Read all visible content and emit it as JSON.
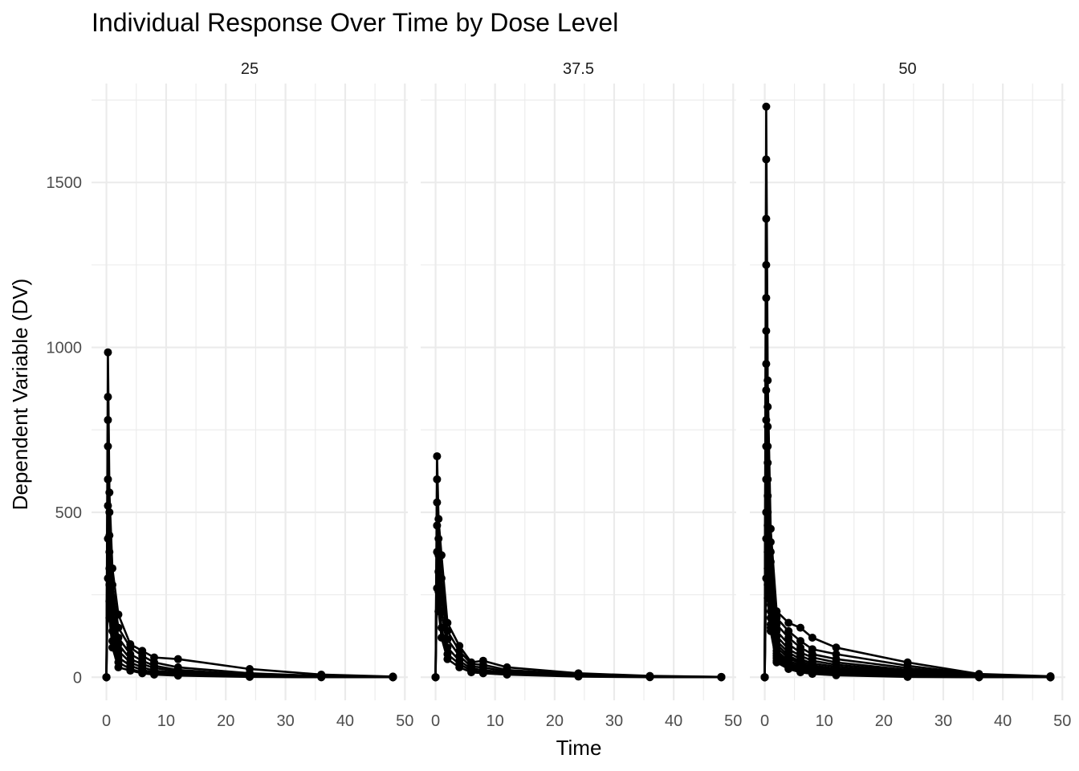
{
  "chart_data": {
    "type": "line",
    "title": "Individual Response Over Time by Dose Level",
    "xlabel": "Time",
    "ylabel": "Dependent Variable (DV)",
    "xlim": [
      -2.5,
      50.5
    ],
    "ylim": [
      -70,
      1800
    ],
    "x_ticks": [
      0,
      10,
      20,
      30,
      40,
      50
    ],
    "y_ticks": [
      0,
      500,
      1000,
      1500
    ],
    "grid": true,
    "legend": "none",
    "facets": [
      {
        "label": "25",
        "series": [
          {
            "x": [
              0,
              0.25,
              0.5,
              1,
              2,
              4,
              6,
              8,
              12,
              24,
              36,
              48
            ],
            "y": [
              0,
              985,
              560,
              330,
              190,
              100,
              80,
              60,
              55,
              25,
              8,
              2
            ]
          },
          {
            "x": [
              0,
              0.25,
              0.5,
              1,
              2,
              4,
              6,
              8,
              12,
              24,
              36,
              48
            ],
            "y": [
              0,
              850,
              500,
              280,
              150,
              90,
              65,
              45,
              30,
              12,
              4,
              1
            ]
          },
          {
            "x": [
              0,
              0.25,
              0.5,
              1,
              2,
              4,
              6,
              8,
              12,
              24,
              36,
              48
            ],
            "y": [
              0,
              780,
              430,
              240,
              120,
              70,
              50,
              35,
              22,
              8,
              3,
              1
            ]
          },
          {
            "x": [
              0,
              0.25,
              0.5,
              1,
              2,
              4,
              6,
              8,
              12,
              24,
              36,
              48
            ],
            "y": [
              0,
              700,
              380,
              200,
              100,
              55,
              40,
              28,
              18,
              6,
              2,
              0
            ]
          },
          {
            "x": [
              0,
              0.25,
              0.5,
              1,
              2,
              4,
              6,
              8,
              12,
              24,
              36,
              48
            ],
            "y": [
              0,
              600,
              330,
              170,
              80,
              45,
              30,
              20,
              14,
              4,
              1,
              0
            ]
          },
          {
            "x": [
              0,
              0.25,
              0.5,
              1,
              2,
              4,
              6,
              8,
              12,
              24,
              36,
              48
            ],
            "y": [
              0,
              520,
              280,
              140,
              60,
              35,
              22,
              15,
              10,
              3,
              1,
              0
            ]
          },
          {
            "x": [
              0,
              0.25,
              0.5,
              1,
              2,
              4,
              6,
              8,
              12,
              24,
              36,
              48
            ],
            "y": [
              0,
              420,
              230,
              110,
              45,
              25,
              15,
              10,
              7,
              2,
              0,
              0
            ]
          },
          {
            "x": [
              0,
              0.25,
              0.5,
              1,
              2,
              4,
              6,
              8,
              12,
              24,
              36,
              48
            ],
            "y": [
              0,
              300,
              180,
              90,
              30,
              20,
              12,
              8,
              5,
              1,
              0,
              0
            ]
          }
        ]
      },
      {
        "label": "37.5",
        "series": [
          {
            "x": [
              0,
              0.25,
              0.5,
              1,
              2,
              4,
              6,
              8,
              12,
              24,
              36,
              48
            ],
            "y": [
              0,
              670,
              480,
              370,
              165,
              95,
              45,
              50,
              30,
              12,
              4,
              1
            ]
          },
          {
            "x": [
              0,
              0.25,
              0.5,
              1,
              2,
              4,
              6,
              8,
              12,
              24,
              36,
              48
            ],
            "y": [
              0,
              600,
              420,
              300,
              140,
              80,
              40,
              38,
              22,
              9,
              3,
              1
            ]
          },
          {
            "x": [
              0,
              0.25,
              0.5,
              1,
              2,
              4,
              6,
              8,
              12,
              24,
              36,
              48
            ],
            "y": [
              0,
              530,
              370,
              250,
              115,
              65,
              32,
              30,
              17,
              7,
              2,
              0
            ]
          },
          {
            "x": [
              0,
              0.25,
              0.5,
              1,
              2,
              4,
              6,
              8,
              12,
              24,
              36,
              48
            ],
            "y": [
              0,
              460,
              320,
              200,
              90,
              50,
              26,
              22,
              13,
              5,
              1,
              0
            ]
          },
          {
            "x": [
              0,
              0.25,
              0.5,
              1,
              2,
              4,
              6,
              8,
              12,
              24,
              36,
              48
            ],
            "y": [
              0,
              380,
              260,
              150,
              70,
              40,
              20,
              16,
              10,
              3,
              1,
              0
            ]
          },
          {
            "x": [
              0,
              0.25,
              0.5,
              1,
              2,
              4,
              6,
              8,
              12,
              24,
              36,
              48
            ],
            "y": [
              0,
              270,
              200,
              120,
              55,
              30,
              15,
              12,
              8,
              2,
              0,
              0
            ]
          }
        ]
      },
      {
        "label": "50",
        "series": [
          {
            "x": [
              0,
              0.25,
              0.5,
              1,
              2,
              4,
              6,
              8,
              12,
              24,
              36,
              48
            ],
            "y": [
              0,
              1730,
              900,
              450,
              200,
              165,
              150,
              120,
              90,
              45,
              10,
              3
            ]
          },
          {
            "x": [
              0,
              0.25,
              0.5,
              1,
              2,
              4,
              6,
              8,
              12,
              24,
              36,
              48
            ],
            "y": [
              0,
              1570,
              820,
              410,
              180,
              140,
              110,
              85,
              70,
              35,
              8,
              2
            ]
          },
          {
            "x": [
              0,
              0.25,
              0.5,
              1,
              2,
              4,
              6,
              8,
              12,
              24,
              36,
              48
            ],
            "y": [
              0,
              1390,
              760,
              380,
              160,
              120,
              90,
              70,
              55,
              28,
              6,
              2
            ]
          },
          {
            "x": [
              0,
              0.25,
              0.5,
              1,
              2,
              4,
              6,
              8,
              12,
              24,
              36,
              48
            ],
            "y": [
              0,
              1250,
              700,
              350,
              140,
              100,
              75,
              60,
              45,
              22,
              5,
              1
            ]
          },
          {
            "x": [
              0,
              0.25,
              0.5,
              1,
              2,
              4,
              6,
              8,
              12,
              24,
              36,
              48
            ],
            "y": [
              0,
              1150,
              650,
              320,
              125,
              85,
              65,
              50,
              38,
              18,
              4,
              1
            ]
          },
          {
            "x": [
              0,
              0.25,
              0.5,
              1,
              2,
              4,
              6,
              8,
              12,
              24,
              36,
              48
            ],
            "y": [
              0,
              1050,
              600,
              290,
              110,
              75,
              55,
              42,
              32,
              14,
              3,
              1
            ]
          },
          {
            "x": [
              0,
              0.25,
              0.5,
              1,
              2,
              4,
              6,
              8,
              12,
              24,
              36,
              48
            ],
            "y": [
              0,
              950,
              550,
              260,
              100,
              65,
              48,
              36,
              26,
              11,
              3,
              0
            ]
          },
          {
            "x": [
              0,
              0.25,
              0.5,
              1,
              2,
              4,
              6,
              8,
              12,
              24,
              36,
              48
            ],
            "y": [
              0,
              870,
              500,
              240,
              90,
              58,
              42,
              30,
              22,
              9,
              2,
              0
            ]
          },
          {
            "x": [
              0,
              0.25,
              0.5,
              1,
              2,
              4,
              6,
              8,
              12,
              24,
              36,
              48
            ],
            "y": [
              0,
              780,
              460,
              220,
              80,
              50,
              36,
              26,
              18,
              7,
              2,
              0
            ]
          },
          {
            "x": [
              0,
              0.25,
              0.5,
              1,
              2,
              4,
              6,
              8,
              12,
              24,
              36,
              48
            ],
            "y": [
              0,
              700,
              420,
              200,
              72,
              44,
              30,
              22,
              15,
              6,
              1,
              0
            ]
          },
          {
            "x": [
              0,
              0.25,
              0.5,
              1,
              2,
              4,
              6,
              8,
              12,
              24,
              36,
              48
            ],
            "y": [
              0,
              600,
              380,
              180,
              65,
              38,
              26,
              18,
              12,
              4,
              1,
              0
            ]
          },
          {
            "x": [
              0,
              0.25,
              0.5,
              1,
              2,
              4,
              6,
              8,
              12,
              24,
              36,
              48
            ],
            "y": [
              0,
              500,
              330,
              160,
              58,
              32,
              22,
              15,
              10,
              3,
              0,
              0
            ]
          },
          {
            "x": [
              0,
              0.25,
              0.5,
              1,
              2,
              4,
              6,
              8,
              12,
              24,
              36,
              48
            ],
            "y": [
              0,
              420,
              280,
              150,
              50,
              28,
              18,
              12,
              8,
              2,
              0,
              0
            ]
          },
          {
            "x": [
              0,
              0.25,
              0.5,
              1,
              2,
              4,
              6,
              8,
              12,
              24,
              36,
              48
            ],
            "y": [
              0,
              300,
              240,
              140,
              45,
              25,
              15,
              10,
              6,
              1,
              0,
              0
            ]
          }
        ]
      }
    ]
  }
}
